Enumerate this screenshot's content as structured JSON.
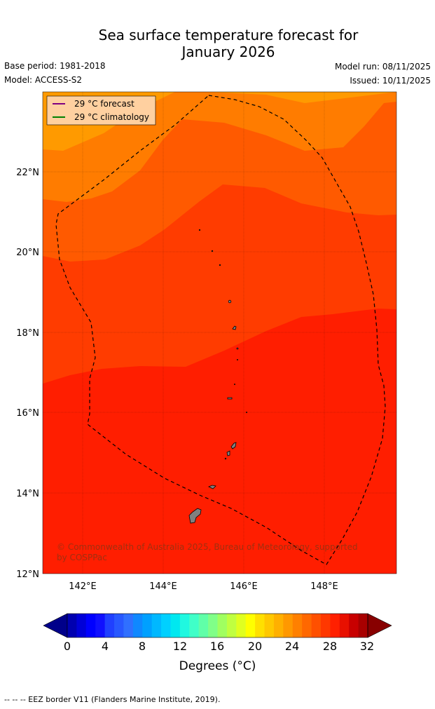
{
  "title_line1": "Sea surface temperature forecast for",
  "title_line2": "January 2026",
  "base_period": "Base period: 1981-2018",
  "model": "Model: ACCESS-S2",
  "model_run": "Model run: 08/11/2025",
  "issued": "Issued: 10/11/2025",
  "legend": [
    {
      "label": "29 °C  forecast",
      "color": "#800080"
    },
    {
      "label": "29 °C  climatology",
      "color": "#008000"
    }
  ],
  "lat_ticks": [
    "22°N",
    "20°N",
    "18°N",
    "16°N",
    "14°N",
    "12°N"
  ],
  "lon_ticks": [
    "142°E",
    "144°E",
    "146°E",
    "148°E"
  ],
  "copyright": "© Commonwealth of Australia 2025, Bureau of Meteorology, supported",
  "copyright2": "by COSPPac",
  "colorbar": {
    "ticks": [
      "0",
      "4",
      "8",
      "12",
      "16",
      "20",
      "24",
      "28",
      "32"
    ],
    "label": "Degrees (°C)",
    "colors": [
      "#00008a",
      "#0000b0",
      "#0000d8",
      "#0000ff",
      "#1010ff",
      "#2040ff",
      "#2858ff",
      "#3070ff",
      "#1088ff",
      "#00a0ff",
      "#00b8ff",
      "#00d0ff",
      "#00e8f0",
      "#20f8e0",
      "#40ffc8",
      "#60ffa8",
      "#80ff88",
      "#a0ff60",
      "#c0ff40",
      "#e0ff20",
      "#ffff00",
      "#ffe000",
      "#ffc800",
      "#ffb000",
      "#ff9800",
      "#ff8000",
      "#ff6800",
      "#ff5000",
      "#ff3800",
      "#ff2000",
      "#e81000",
      "#c80000",
      "#a80000",
      "#880000"
    ]
  },
  "map_colors": {
    "band_top": "#ff9a00",
    "band2": "#ff7c00",
    "band3": "#ff5a00",
    "band4": "#ff3c00",
    "band5": "#ff1e00"
  },
  "footer": "--  --  -- EEZ border V11 (Flanders Marine Institute, 2019)."
}
